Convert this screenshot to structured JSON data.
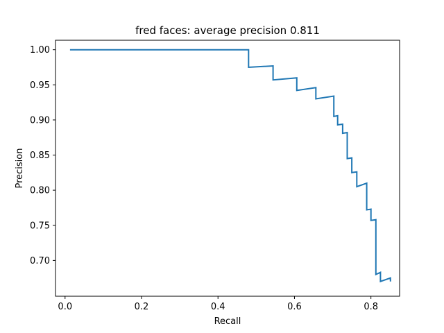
{
  "chart_data": {
    "type": "line",
    "title": "fred faces: average precision 0.811",
    "xlabel": "Recall",
    "ylabel": "Precision",
    "xlim": [
      -0.025,
      0.875
    ],
    "ylim": [
      0.649,
      1.0135
    ],
    "x_ticks": [
      0.0,
      0.2,
      0.4,
      0.6,
      0.8
    ],
    "x_tick_labels": [
      "0.0",
      "0.2",
      "0.4",
      "0.6",
      "0.8"
    ],
    "y_ticks": [
      0.7,
      0.75,
      0.8,
      0.85,
      0.9,
      0.95,
      1.0
    ],
    "y_tick_labels": [
      "0.70",
      "0.75",
      "0.80",
      "0.85",
      "0.90",
      "0.95",
      "1.00"
    ],
    "grid": false,
    "series": [
      {
        "color": "#1f77b4",
        "x": [
          0.013,
          0.48,
          0.48,
          0.544,
          0.544,
          0.606,
          0.606,
          0.656,
          0.656,
          0.703,
          0.703,
          0.713,
          0.713,
          0.726,
          0.726,
          0.738,
          0.738,
          0.75,
          0.75,
          0.763,
          0.763,
          0.789,
          0.789,
          0.8,
          0.8,
          0.813,
          0.813,
          0.825,
          0.825,
          0.851,
          0.851
        ],
        "y": [
          1.0,
          1.0,
          0.975,
          0.977,
          0.957,
          0.96,
          0.942,
          0.946,
          0.93,
          0.934,
          0.905,
          0.906,
          0.893,
          0.894,
          0.881,
          0.882,
          0.845,
          0.846,
          0.825,
          0.826,
          0.805,
          0.81,
          0.772,
          0.773,
          0.757,
          0.758,
          0.68,
          0.683,
          0.67,
          0.675,
          0.67
        ]
      }
    ]
  }
}
